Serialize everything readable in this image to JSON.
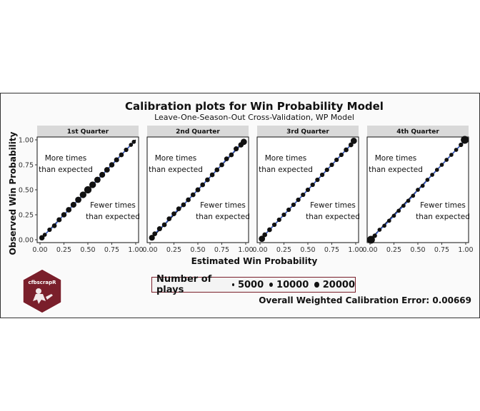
{
  "chart_data": {
    "type": "scatter",
    "title": "Calibration plots for Win Probability Model",
    "subtitle": "Leave-One-Season-Out Cross-Validation, WP Model",
    "xlabel": "Estimated Win Probability",
    "ylabel": "Observed Win Probability",
    "xlim": [
      0,
      1
    ],
    "ylim": [
      0,
      1
    ],
    "ticks": [
      "0.00",
      "0.25",
      "0.50",
      "0.75",
      "1.00"
    ],
    "annotation_above": [
      "More times",
      "than expected"
    ],
    "annotation_below": [
      "Fewer times",
      "than expected"
    ],
    "facets": [
      {
        "label": "1st Quarter",
        "points": [
          {
            "x": 0.02,
            "y": 0.02,
            "n": 7000
          },
          {
            "x": 0.05,
            "y": 0.05,
            "n": 3000
          },
          {
            "x": 0.1,
            "y": 0.1,
            "n": 4000
          },
          {
            "x": 0.15,
            "y": 0.14,
            "n": 5000
          },
          {
            "x": 0.2,
            "y": 0.2,
            "n": 6000
          },
          {
            "x": 0.25,
            "y": 0.25,
            "n": 7000
          },
          {
            "x": 0.3,
            "y": 0.3,
            "n": 8000
          },
          {
            "x": 0.35,
            "y": 0.35,
            "n": 9000
          },
          {
            "x": 0.4,
            "y": 0.4,
            "n": 11000
          },
          {
            "x": 0.45,
            "y": 0.45,
            "n": 13000
          },
          {
            "x": 0.5,
            "y": 0.5,
            "n": 17000
          },
          {
            "x": 0.55,
            "y": 0.55,
            "n": 13000
          },
          {
            "x": 0.6,
            "y": 0.6,
            "n": 11000
          },
          {
            "x": 0.65,
            "y": 0.65,
            "n": 9000
          },
          {
            "x": 0.7,
            "y": 0.7,
            "n": 8000
          },
          {
            "x": 0.75,
            "y": 0.75,
            "n": 7000
          },
          {
            "x": 0.8,
            "y": 0.8,
            "n": 6000
          },
          {
            "x": 0.85,
            "y": 0.85,
            "n": 5000
          },
          {
            "x": 0.9,
            "y": 0.9,
            "n": 4000
          },
          {
            "x": 0.95,
            "y": 0.95,
            "n": 3000
          },
          {
            "x": 0.98,
            "y": 0.98,
            "n": 3000
          }
        ]
      },
      {
        "label": "2nd Quarter",
        "points": [
          {
            "x": 0.02,
            "y": 0.02,
            "n": 9000
          },
          {
            "x": 0.05,
            "y": 0.06,
            "n": 5000
          },
          {
            "x": 0.1,
            "y": 0.11,
            "n": 6000
          },
          {
            "x": 0.15,
            "y": 0.15,
            "n": 5000
          },
          {
            "x": 0.2,
            "y": 0.21,
            "n": 5000
          },
          {
            "x": 0.25,
            "y": 0.26,
            "n": 5000
          },
          {
            "x": 0.3,
            "y": 0.31,
            "n": 5000
          },
          {
            "x": 0.35,
            "y": 0.35,
            "n": 5000
          },
          {
            "x": 0.4,
            "y": 0.4,
            "n": 5000
          },
          {
            "x": 0.45,
            "y": 0.45,
            "n": 5000
          },
          {
            "x": 0.5,
            "y": 0.5,
            "n": 5500
          },
          {
            "x": 0.55,
            "y": 0.55,
            "n": 5000
          },
          {
            "x": 0.6,
            "y": 0.6,
            "n": 5000
          },
          {
            "x": 0.65,
            "y": 0.65,
            "n": 5000
          },
          {
            "x": 0.7,
            "y": 0.7,
            "n": 5000
          },
          {
            "x": 0.75,
            "y": 0.75,
            "n": 5000
          },
          {
            "x": 0.8,
            "y": 0.81,
            "n": 5000
          },
          {
            "x": 0.85,
            "y": 0.85,
            "n": 5000
          },
          {
            "x": 0.9,
            "y": 0.91,
            "n": 6000
          },
          {
            "x": 0.95,
            "y": 0.95,
            "n": 7000
          },
          {
            "x": 0.98,
            "y": 0.98,
            "n": 11000
          }
        ]
      },
      {
        "label": "3rd Quarter",
        "points": [
          {
            "x": 0.02,
            "y": 0.01,
            "n": 11000
          },
          {
            "x": 0.05,
            "y": 0.05,
            "n": 5000
          },
          {
            "x": 0.1,
            "y": 0.1,
            "n": 5000
          },
          {
            "x": 0.15,
            "y": 0.15,
            "n": 4000
          },
          {
            "x": 0.2,
            "y": 0.2,
            "n": 4000
          },
          {
            "x": 0.25,
            "y": 0.25,
            "n": 4000
          },
          {
            "x": 0.3,
            "y": 0.3,
            "n": 4000
          },
          {
            "x": 0.35,
            "y": 0.35,
            "n": 4000
          },
          {
            "x": 0.4,
            "y": 0.4,
            "n": 4000
          },
          {
            "x": 0.45,
            "y": 0.45,
            "n": 4000
          },
          {
            "x": 0.5,
            "y": 0.5,
            "n": 4000
          },
          {
            "x": 0.55,
            "y": 0.55,
            "n": 4000
          },
          {
            "x": 0.6,
            "y": 0.6,
            "n": 4000
          },
          {
            "x": 0.65,
            "y": 0.65,
            "n": 4000
          },
          {
            "x": 0.7,
            "y": 0.7,
            "n": 4000
          },
          {
            "x": 0.75,
            "y": 0.75,
            "n": 4000
          },
          {
            "x": 0.8,
            "y": 0.8,
            "n": 4000
          },
          {
            "x": 0.85,
            "y": 0.85,
            "n": 4000
          },
          {
            "x": 0.9,
            "y": 0.9,
            "n": 5000
          },
          {
            "x": 0.95,
            "y": 0.95,
            "n": 5000
          },
          {
            "x": 0.98,
            "y": 0.99,
            "n": 11000
          }
        ]
      },
      {
        "label": "4th Quarter",
        "points": [
          {
            "x": 0.01,
            "y": 0.0,
            "n": 20000
          },
          {
            "x": 0.05,
            "y": 0.04,
            "n": 4000
          },
          {
            "x": 0.1,
            "y": 0.1,
            "n": 3000
          },
          {
            "x": 0.15,
            "y": 0.14,
            "n": 3000
          },
          {
            "x": 0.2,
            "y": 0.19,
            "n": 3000
          },
          {
            "x": 0.25,
            "y": 0.24,
            "n": 3000
          },
          {
            "x": 0.3,
            "y": 0.29,
            "n": 3000
          },
          {
            "x": 0.35,
            "y": 0.34,
            "n": 3000
          },
          {
            "x": 0.4,
            "y": 0.39,
            "n": 3000
          },
          {
            "x": 0.45,
            "y": 0.44,
            "n": 3000
          },
          {
            "x": 0.5,
            "y": 0.5,
            "n": 3000
          },
          {
            "x": 0.55,
            "y": 0.54,
            "n": 3000
          },
          {
            "x": 0.6,
            "y": 0.6,
            "n": 3000
          },
          {
            "x": 0.65,
            "y": 0.65,
            "n": 3000
          },
          {
            "x": 0.7,
            "y": 0.7,
            "n": 3000
          },
          {
            "x": 0.75,
            "y": 0.75,
            "n": 3000
          },
          {
            "x": 0.8,
            "y": 0.8,
            "n": 3000
          },
          {
            "x": 0.85,
            "y": 0.85,
            "n": 3000
          },
          {
            "x": 0.9,
            "y": 0.9,
            "n": 3000
          },
          {
            "x": 0.95,
            "y": 0.95,
            "n": 4000
          },
          {
            "x": 0.99,
            "y": 1.0,
            "n": 20000
          }
        ]
      }
    ],
    "size_legend": {
      "title": "Number of plays",
      "values": [
        5000,
        10000,
        20000
      ],
      "labels": [
        "5000",
        "10000",
        "20000"
      ]
    },
    "colors": {
      "fit_line": "#3a5fcd",
      "diagonal": "#000000",
      "points": "#111111",
      "strip": "#d9d9d9",
      "brand": "#7a1f2b"
    },
    "grid": false
  },
  "footer": {
    "error_text": "Overall Weighted Calibration Error: 0.00669"
  },
  "logo": {
    "text": "cfbscrapR"
  }
}
